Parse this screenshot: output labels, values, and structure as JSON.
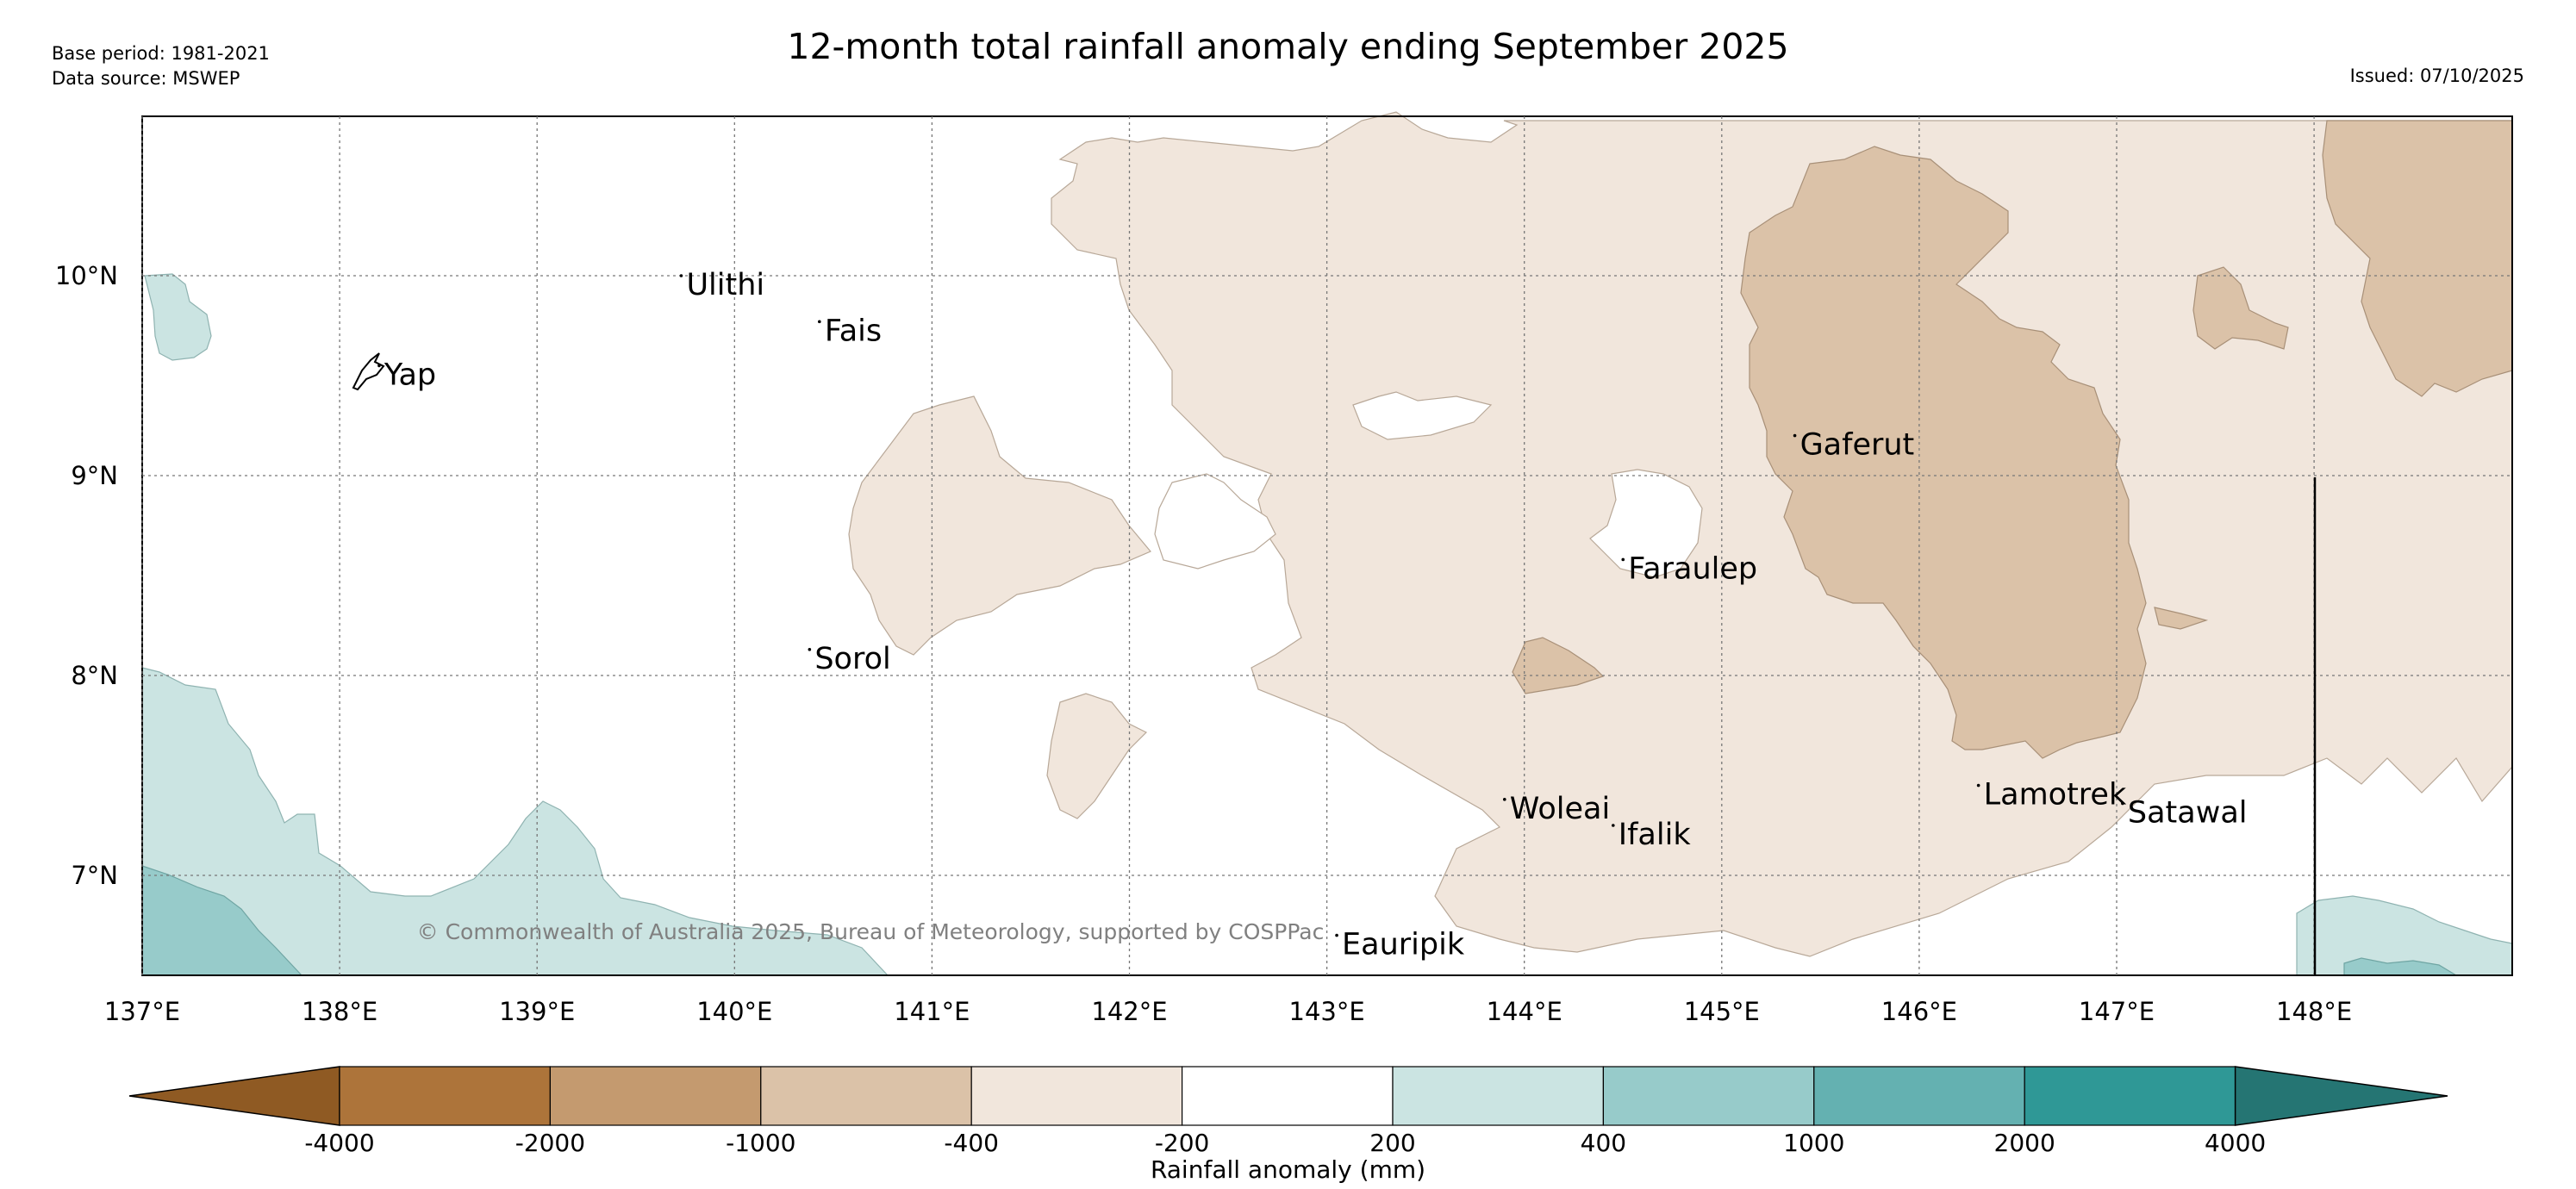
{
  "title": "12-month total rainfall anomaly ending September 2025",
  "base_period": "Base period: 1981-2021",
  "data_source": "Data source: MSWEP",
  "issued": "Issued: 07/10/2025",
  "copyright": "© Commonwealth of Australia 2025, Bureau of Meteorology, supported by COSPPac",
  "axes": {
    "lon_ticks": [
      "137°E",
      "138°E",
      "139°E",
      "140°E",
      "141°E",
      "142°E",
      "143°E",
      "144°E",
      "145°E",
      "146°E",
      "147°E",
      "148°E"
    ],
    "lat_ticks": [
      "10°N",
      "9°N",
      "8°N",
      "7°N"
    ]
  },
  "places": [
    {
      "name": "Yap",
      "lon": 138.2,
      "lat": 9.55
    },
    {
      "name": "Ulithi",
      "lon": 139.73,
      "lat": 10.0
    },
    {
      "name": "Fais",
      "lon": 140.43,
      "lat": 9.77
    },
    {
      "name": "Sorol",
      "lon": 140.38,
      "lat": 8.13
    },
    {
      "name": "Gaferut",
      "lon": 145.37,
      "lat": 9.2
    },
    {
      "name": "Faraulep",
      "lon": 144.5,
      "lat": 8.58
    },
    {
      "name": "Woleai",
      "lon": 143.9,
      "lat": 7.38
    },
    {
      "name": "Ifalik",
      "lon": 144.45,
      "lat": 7.25
    },
    {
      "name": "Lamotrek",
      "lon": 146.3,
      "lat": 7.45
    },
    {
      "name": "Satawal",
      "lon": 147.03,
      "lat": 7.36
    },
    {
      "name": "Eauripik",
      "lon": 143.05,
      "lat": 6.7
    }
  ],
  "colorbar": {
    "label": "Rainfall anomaly (mm)",
    "ticks": [
      "-4000",
      "-2000",
      "-1000",
      "-400",
      "-200",
      "200",
      "400",
      "1000",
      "2000",
      "4000"
    ],
    "colors": [
      "#8f5a23",
      "#ad743a",
      "#c49a6f",
      "#dbc2a8",
      "#f1e6dc",
      "#ffffff",
      "#cbe4e2",
      "#97cbca",
      "#64b1b1",
      "#2f9896",
      "#257573"
    ]
  },
  "chart_data": {
    "type": "map",
    "title": "12-month total rainfall anomaly ending September 2025",
    "xlim": [
      137,
      149
    ],
    "ylim": [
      6.5,
      10.8
    ],
    "units": "mm",
    "regions": [
      {
        "class": "-400 to -200",
        "area": "broad dry anomaly across central and eastern area (141–149°E)"
      },
      {
        "class": "-1000 to -400",
        "area": "core around 145.5–147°E, 7.6–10.4°N; north-east corner; small patch near 144°E 8.1°N"
      },
      {
        "class": "200 to 400",
        "area": "south-west corner near 137–139.5°E, 6.5–8°N; north-west near 137°E 10°N; south-east near 148–149°E 6.8°N"
      },
      {
        "class": "400 to 1000",
        "area": "far south-west corner near 137–138.5°E, 6.5–7°N"
      }
    ]
  }
}
